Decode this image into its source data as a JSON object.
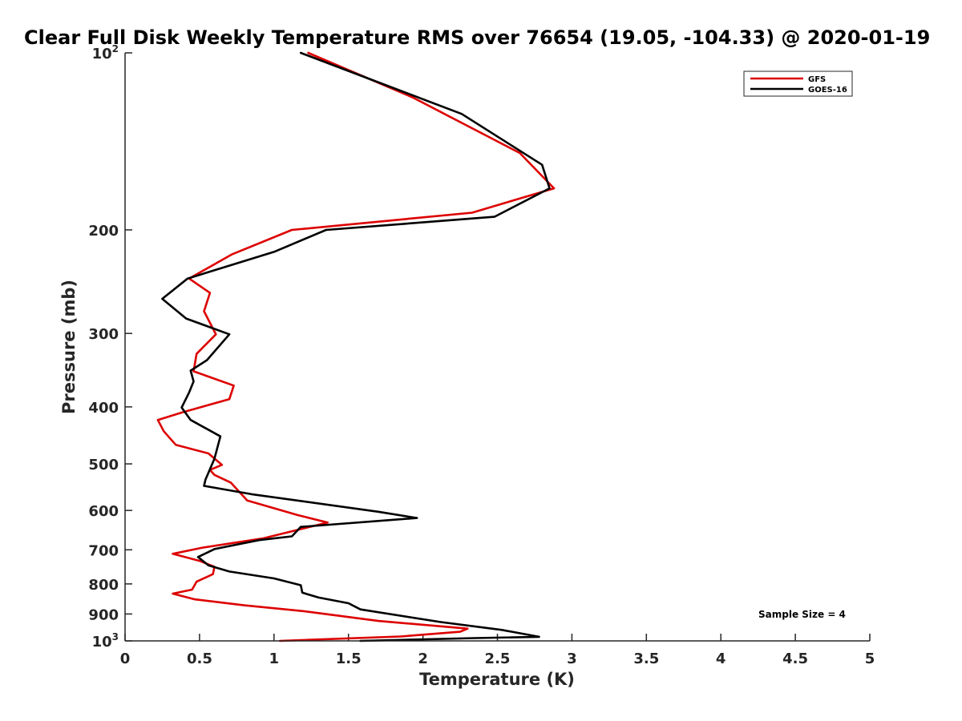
{
  "chart_data": {
    "type": "line",
    "title": "Clear Full Disk Weekly Temperature RMS over 76654 (19.05, -104.33) @ 2020-01-19",
    "xlabel": "Temperature (K)",
    "ylabel": "Pressure (mb)",
    "xlim": [
      0,
      5
    ],
    "ylim": [
      100,
      1000
    ],
    "y_scale": "log",
    "y_reversed": true,
    "grid": false,
    "legend_placement": "top-right",
    "x_ticks": [
      "0",
      "0.5",
      "1",
      "1.5",
      "2",
      "2.5",
      "3",
      "3.5",
      "4",
      "4.5",
      "5"
    ],
    "y_ticks": [
      {
        "value": 100,
        "base": "10",
        "exp": "2"
      },
      {
        "value": 200,
        "label": "200"
      },
      {
        "value": 300,
        "label": "300"
      },
      {
        "value": 400,
        "label": "400"
      },
      {
        "value": 500,
        "label": "500"
      },
      {
        "value": 600,
        "label": "600"
      },
      {
        "value": 700,
        "label": "700"
      },
      {
        "value": 800,
        "label": "800"
      },
      {
        "value": 900,
        "label": "900"
      },
      {
        "value": 1000,
        "base": "10",
        "exp": "3"
      }
    ],
    "annotation": "Sample Size = 4",
    "series": [
      {
        "name": "GFS",
        "color": "#dd0000",
        "points": [
          [
            1.23,
            100
          ],
          [
            1.93,
            119
          ],
          [
            2.65,
            148
          ],
          [
            2.88,
            170
          ],
          [
            2.33,
            187
          ],
          [
            1.12,
            200
          ],
          [
            0.72,
            220
          ],
          [
            0.43,
            242
          ],
          [
            0.57,
            256
          ],
          [
            0.53,
            275
          ],
          [
            0.61,
            301
          ],
          [
            0.48,
            325
          ],
          [
            0.46,
            348
          ],
          [
            0.73,
            368
          ],
          [
            0.7,
            388
          ],
          [
            0.38,
            409
          ],
          [
            0.22,
            421
          ],
          [
            0.26,
            440
          ],
          [
            0.34,
            464
          ],
          [
            0.56,
            480
          ],
          [
            0.65,
            502
          ],
          [
            0.57,
            512
          ],
          [
            0.6,
            522
          ],
          [
            0.71,
            538
          ],
          [
            0.82,
            577
          ],
          [
            1.16,
            611
          ],
          [
            1.36,
            629
          ],
          [
            0.93,
            669
          ],
          [
            0.52,
            694
          ],
          [
            0.32,
            711
          ],
          [
            0.5,
            731
          ],
          [
            0.6,
            748
          ],
          [
            0.59,
            770
          ],
          [
            0.48,
            793
          ],
          [
            0.45,
            818
          ],
          [
            0.32,
            831
          ],
          [
            0.47,
            850
          ],
          [
            0.8,
            870
          ],
          [
            1.2,
            890
          ],
          [
            1.7,
            925
          ],
          [
            2.3,
            953
          ],
          [
            2.25,
            965
          ],
          [
            1.85,
            983
          ],
          [
            1.04,
            1000
          ]
        ]
      },
      {
        "name": "GOES-16",
        "color": "#000000",
        "points": [
          [
            1.18,
            100
          ],
          [
            2.26,
            127
          ],
          [
            2.8,
            155
          ],
          [
            2.85,
            170
          ],
          [
            2.48,
            190
          ],
          [
            1.35,
            200
          ],
          [
            1.0,
            218
          ],
          [
            0.42,
            242
          ],
          [
            0.25,
            262
          ],
          [
            0.41,
            283
          ],
          [
            0.7,
            301
          ],
          [
            0.55,
            333
          ],
          [
            0.44,
            347
          ],
          [
            0.46,
            362
          ],
          [
            0.43,
            378
          ],
          [
            0.38,
            401
          ],
          [
            0.44,
            421
          ],
          [
            0.64,
            449
          ],
          [
            0.6,
            490
          ],
          [
            0.54,
            532
          ],
          [
            0.53,
            545
          ],
          [
            0.85,
            563
          ],
          [
            1.7,
            603
          ],
          [
            1.96,
            618
          ],
          [
            1.18,
            640
          ],
          [
            1.12,
            664
          ],
          [
            0.9,
            674
          ],
          [
            0.6,
            698
          ],
          [
            0.49,
            720
          ],
          [
            0.56,
            744
          ],
          [
            0.7,
            762
          ],
          [
            1.0,
            783
          ],
          [
            1.18,
            804
          ],
          [
            1.19,
            828
          ],
          [
            1.3,
            844
          ],
          [
            1.5,
            863
          ],
          [
            1.58,
            884
          ],
          [
            2.12,
            929
          ],
          [
            2.53,
            958
          ],
          [
            2.78,
            984
          ],
          [
            2.35,
            989
          ],
          [
            1.58,
            1000
          ]
        ]
      }
    ]
  }
}
